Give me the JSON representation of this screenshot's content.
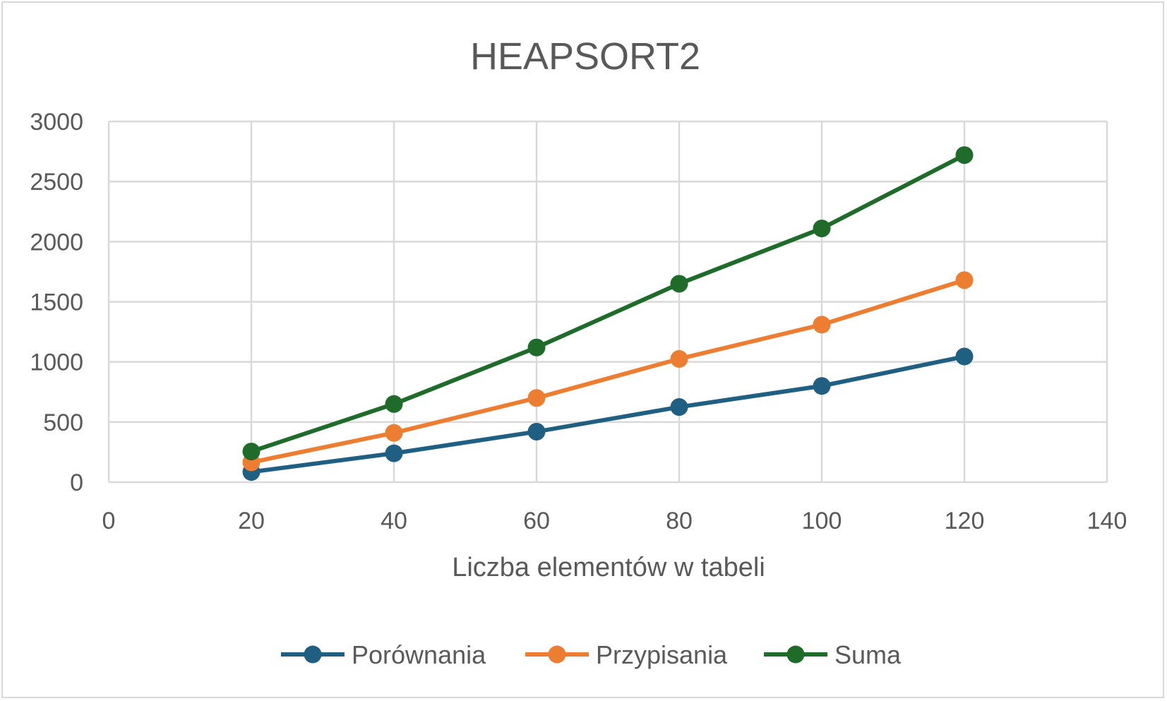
{
  "chart_data": {
    "type": "line",
    "title": "HEAPSORT2",
    "xlabel": "Liczba elementów w tabeli",
    "ylabel": "",
    "xlim": [
      0,
      140
    ],
    "ylim": [
      0,
      3000
    ],
    "x_ticks": [
      "0",
      "20",
      "40",
      "60",
      "80",
      "100",
      "120",
      "140"
    ],
    "y_ticks": [
      "0",
      "500",
      "1000",
      "1500",
      "2000",
      "2500",
      "3000"
    ],
    "x_tick_values": [
      0,
      20,
      40,
      60,
      80,
      100,
      120,
      140
    ],
    "y_tick_values": [
      0,
      500,
      1000,
      1500,
      2000,
      2500,
      3000
    ],
    "x": [
      20,
      40,
      60,
      80,
      100,
      120
    ],
    "grid": true,
    "legend_position": "bottom",
    "series": [
      {
        "name": "Porównania",
        "color": "#1f5f82",
        "values": [
          85,
          240,
          420,
          625,
          800,
          1045
        ]
      },
      {
        "name": "Przypisania",
        "color": "#ed7d31",
        "values": [
          165,
          410,
          700,
          1025,
          1310,
          1680
        ]
      },
      {
        "name": "Suma",
        "color": "#1e6b2a",
        "values": [
          255,
          650,
          1120,
          1650,
          2110,
          2720
        ]
      }
    ]
  }
}
